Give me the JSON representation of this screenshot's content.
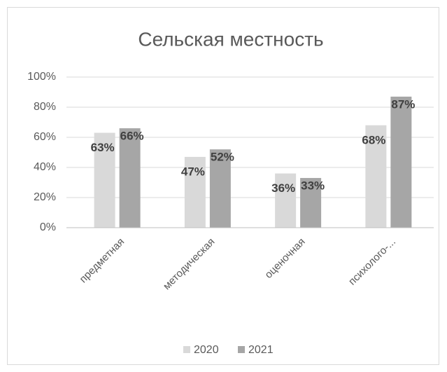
{
  "chart_data": {
    "type": "bar",
    "title": "Сельская местность",
    "categories": [
      "предметная",
      "методическая",
      "оценочная",
      "психолого-..."
    ],
    "series": [
      {
        "name": "2020",
        "color": "#d9d9d9",
        "values": [
          63,
          47,
          36,
          68
        ],
        "value_labels": [
          "63%",
          "47%",
          "36%",
          "68%"
        ]
      },
      {
        "name": "2021",
        "color": "#a6a6a6",
        "values": [
          66,
          52,
          33,
          87
        ],
        "value_labels": [
          "66%",
          "52%",
          "33%",
          "87%"
        ]
      }
    ],
    "ylim": [
      0,
      100
    ],
    "yticks": [
      {
        "value": 0,
        "label": "0%"
      },
      {
        "value": 20,
        "label": "20%"
      },
      {
        "value": 40,
        "label": "40%"
      },
      {
        "value": 60,
        "label": "60%"
      },
      {
        "value": 80,
        "label": "80%"
      },
      {
        "value": 100,
        "label": "100%"
      }
    ],
    "grid": true,
    "legend": "bottom"
  }
}
